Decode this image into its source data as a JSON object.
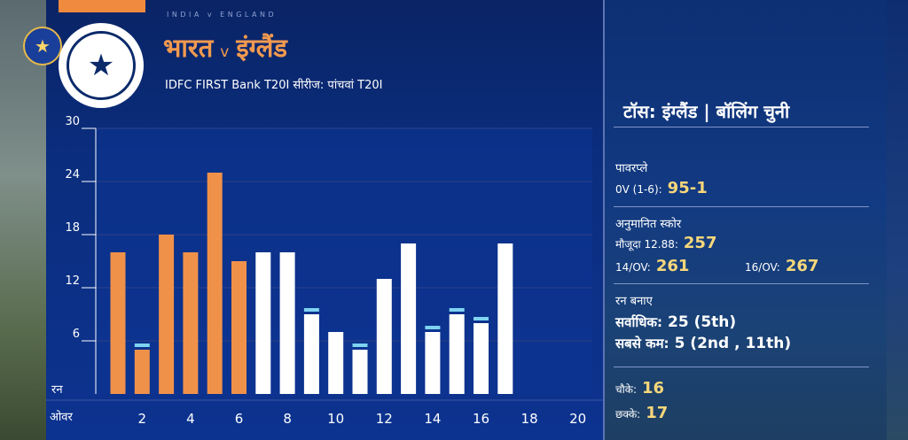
{
  "header": {
    "matchup_small": "INDIA v ENGLAND",
    "team1": "भारत",
    "vs": "v",
    "team2": "इंग्लैंड",
    "series": "IDFC FIRST Bank T20I सीरीज: पांचवां T20I"
  },
  "panel": {
    "toss": "टॉस:  इंग्लैंड | बॉलिंग चुनी",
    "powerplay": {
      "heading": "पावरप्ले",
      "label": "0V (1-6):",
      "value": "95-1"
    },
    "projected": {
      "heading": "अनुमानित स्कोर",
      "current_label": "मौजूदा 12.88:",
      "current_value": "257",
      "ov14_label": "14/OV:",
      "ov14_value": "261",
      "ov16_label": "16/OV:",
      "ov16_value": "267"
    },
    "runs": {
      "heading": "रन बनाए",
      "max_label": "सर्वाधिक:",
      "max_value": "25 (5th)",
      "min_label": "सबसे कम:",
      "min_value": "5 (2nd , 11th)"
    },
    "fours_label": "चौके:",
    "fours_value": "16",
    "sixes_label": "छक्के:",
    "sixes_value": "17"
  },
  "chart_data": {
    "type": "bar",
    "ylabel": "रन",
    "xlabel": "ओवर",
    "ylim": [
      0,
      30
    ],
    "yticks": [
      6,
      12,
      18,
      24,
      30
    ],
    "xticks": [
      2,
      4,
      6,
      8,
      10,
      12,
      14,
      16,
      18,
      20
    ],
    "categories": [
      1,
      2,
      3,
      4,
      5,
      6,
      7,
      8,
      9,
      10,
      11,
      12,
      13,
      14,
      15,
      16,
      17
    ],
    "values": [
      16,
      5,
      18,
      16,
      25,
      15,
      16,
      16,
      9,
      7,
      5,
      13,
      17,
      7,
      9,
      8,
      17
    ],
    "wickets": [
      0,
      1,
      0,
      0,
      0,
      0,
      0,
      0,
      1,
      0,
      1,
      0,
      0,
      1,
      1,
      1,
      0
    ],
    "powerplay_overs": [
      1,
      2,
      3,
      4,
      5,
      6
    ],
    "colors": {
      "powerplay": "#f0914a",
      "other": "#ffffff",
      "wicket": "#7fd3f0",
      "grid": "#263f88"
    }
  }
}
